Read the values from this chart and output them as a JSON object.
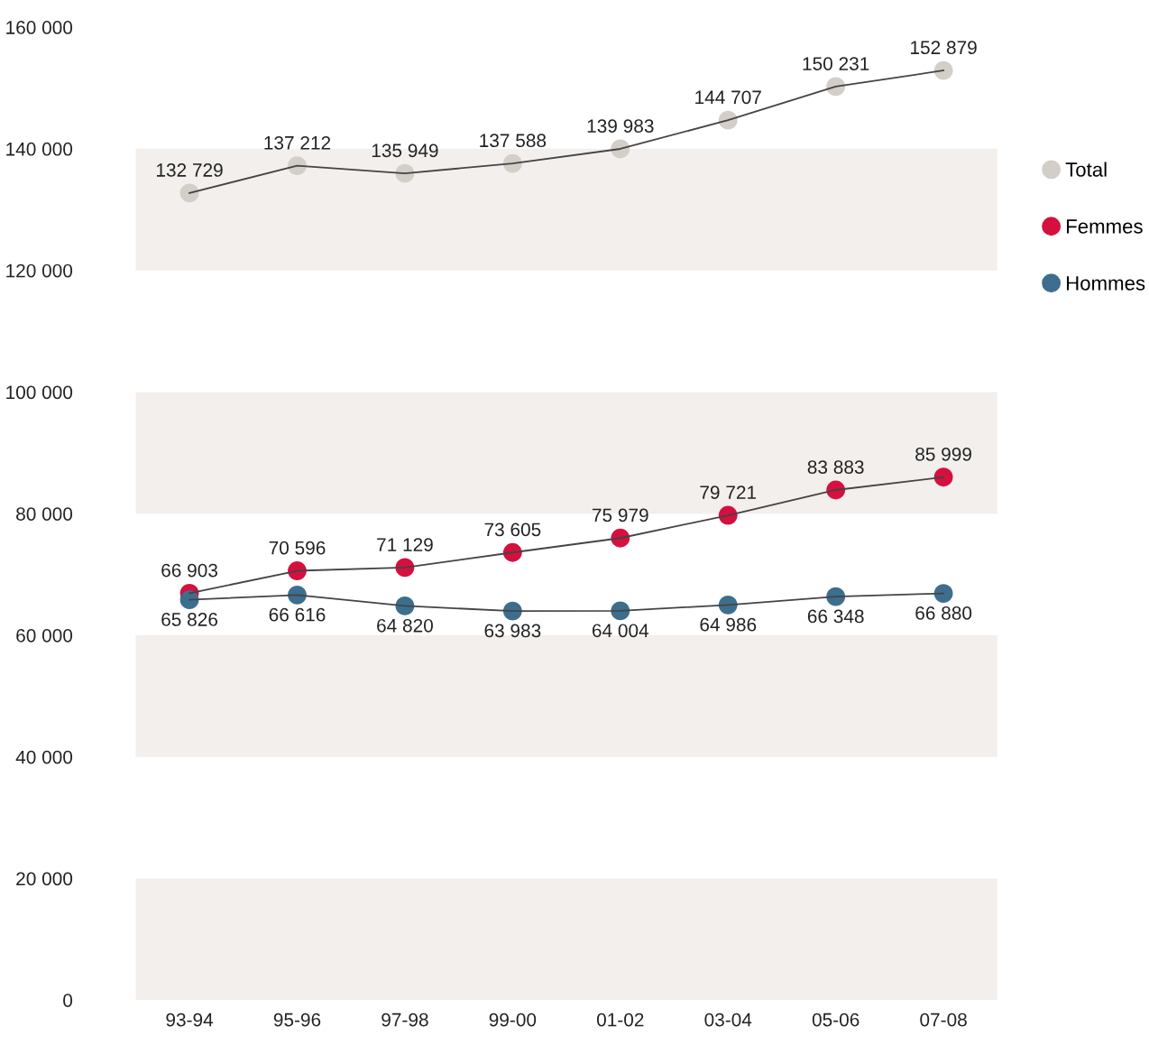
{
  "chart_data": {
    "type": "line",
    "categories": [
      "93-94",
      "95-96",
      "97-98",
      "99-00",
      "01-02",
      "03-04",
      "05-06",
      "07-08"
    ],
    "series": [
      {
        "name": "Total",
        "color": "#d3cec8",
        "values": [
          132729,
          137212,
          135949,
          137588,
          139983,
          144707,
          150231,
          152879
        ],
        "value_labels": [
          "132 729",
          "137 212",
          "135 949",
          "137 588",
          "139 983",
          "144 707",
          "150 231",
          "152 879"
        ]
      },
      {
        "name": "Femmes",
        "color": "#d5103f",
        "values": [
          66903,
          70596,
          71129,
          73605,
          75979,
          79721,
          83883,
          85999
        ],
        "value_labels": [
          "66 903",
          "70 596",
          "71 129",
          "73 605",
          "75 979",
          "79 721",
          "83 883",
          "85 999"
        ]
      },
      {
        "name": "Hommes",
        "color": "#3e6e8e",
        "values": [
          65826,
          66616,
          64820,
          63983,
          64004,
          64986,
          66348,
          66880
        ],
        "value_labels": [
          "65 826",
          "66 616",
          "64 820",
          "63 983",
          "64 004",
          "64 986",
          "66 348",
          "66 880"
        ]
      }
    ],
    "ylim": [
      0,
      160000
    ],
    "yticks": [
      {
        "value": 0,
        "label": "0"
      },
      {
        "value": 20000,
        "label": "20 000"
      },
      {
        "value": 40000,
        "label": "40 000"
      },
      {
        "value": 60000,
        "label": "60 000"
      },
      {
        "value": 80000,
        "label": "80 000"
      },
      {
        "value": 100000,
        "label": "100 000"
      },
      {
        "value": 120000,
        "label": "120 000"
      },
      {
        "value": 140000,
        "label": "140 000"
      },
      {
        "value": 160000,
        "label": "160 000"
      }
    ],
    "bands": [
      {
        "axis": "y",
        "from": 0,
        "to": 20000,
        "color": "#f2efec"
      },
      {
        "axis": "y",
        "from": 40000,
        "to": 60000,
        "color": "#f2efec"
      },
      {
        "axis": "y",
        "from": 80000,
        "to": 100000,
        "color": "#f2efec"
      },
      {
        "axis": "y",
        "from": 120000,
        "to": 140000,
        "color": "#f2efec"
      }
    ],
    "marker": "circle",
    "line_style": "solid",
    "grid": false,
    "legend": "right"
  }
}
